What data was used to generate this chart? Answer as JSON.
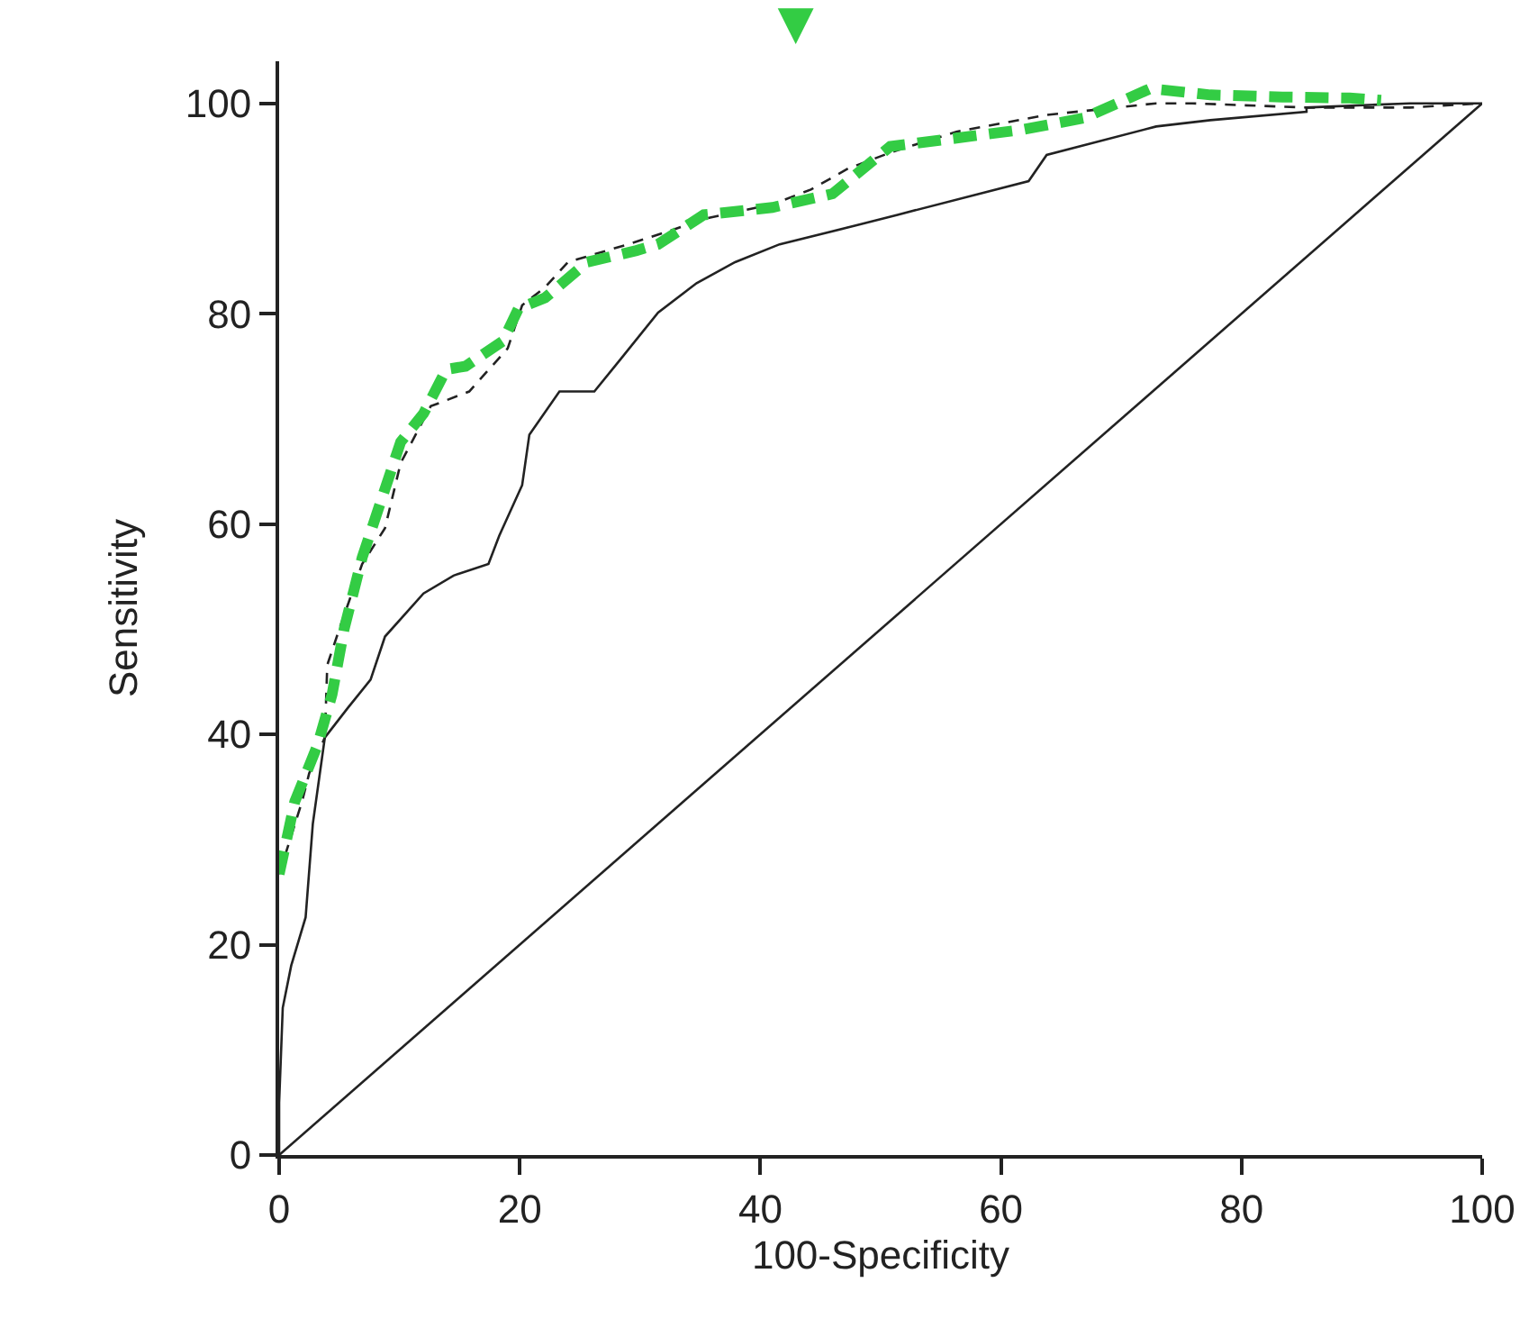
{
  "chart_data": {
    "type": "line",
    "xlabel": "100-Specificity",
    "ylabel": "Sensitivity",
    "xlim": [
      0,
      100
    ],
    "ylim": [
      0,
      104
    ],
    "xticks": [
      0,
      20,
      40,
      60,
      80,
      100
    ],
    "yticks": [
      0,
      20,
      40,
      60,
      80,
      100
    ],
    "marker": "none",
    "series": [
      {
        "color": "#222222",
        "line_style": "solid",
        "x": [
          0,
          100
        ],
        "values": [
          0,
          100
        ]
      },
      {
        "color": "#222222",
        "line_style": "solid",
        "x": [
          0,
          0,
          0.3,
          1,
          2.2,
          2.8,
          3.8,
          5.7,
          7.6,
          8.8,
          12,
          14.5,
          17.4,
          18.3,
          20.2,
          20.8,
          23.3,
          26.2,
          28.4,
          31.5,
          34.7,
          37.9,
          41.6,
          48,
          51.4,
          62.3,
          63.8,
          72.9,
          77.4,
          85.4,
          85.4,
          94,
          100
        ],
        "values": [
          0,
          5,
          14,
          18,
          22.6,
          31.5,
          39.7,
          42.5,
          45.2,
          49.3,
          53.4,
          55.1,
          56.2,
          58.9,
          63.7,
          68.5,
          72.6,
          72.6,
          75.7,
          80.1,
          82.9,
          84.9,
          86.6,
          88.4,
          89.4,
          92.6,
          95.1,
          97.8,
          98.4,
          99.2,
          99.6,
          100,
          100
        ]
      },
      {
        "color": "#222222",
        "line_style": "dashed",
        "x": [
          0,
          1.9,
          2.5,
          3.8,
          4,
          5,
          6.9,
          8.8,
          10.1,
          12.6,
          15.8,
          19,
          20.2,
          22.1,
          24,
          29,
          32.8,
          35.3,
          41,
          44.2,
          47.3,
          51,
          56.3,
          63.8,
          72.9,
          75.9,
          85.4,
          94,
          100
        ],
        "values": [
          26.7,
          33.6,
          36.3,
          39.7,
          46.6,
          50,
          56.2,
          59.6,
          65.8,
          71.2,
          72.6,
          76.7,
          80.8,
          82.5,
          84.9,
          86.6,
          88,
          89,
          90.4,
          91.8,
          93.8,
          95.4,
          97.3,
          98.9,
          100,
          100,
          99.6,
          99.6,
          100
        ]
      },
      {
        "color": "#33cc44",
        "line_style": "dashed",
        "x": [
          0,
          1.3,
          3.2,
          4.4,
          5.4,
          6.9,
          8.5,
          10.1,
          12,
          13.9,
          15.5,
          18.6,
          19.9,
          22.1,
          25.6,
          29.7,
          31.5,
          35.3,
          41,
          46,
          50.8,
          56.3,
          61.8,
          66.9,
          72.4,
          77.4,
          83.4,
          89,
          91.6
        ],
        "values": [
          26.7,
          33.6,
          39,
          43.8,
          50,
          56.8,
          62.3,
          67.8,
          70.5,
          74.7,
          75,
          77.4,
          80.5,
          81.5,
          84.9,
          86,
          86.6,
          89.4,
          90.1,
          91.4,
          95.9,
          96.7,
          97.5,
          98.6,
          101.4,
          100.8,
          100.6,
          100.5,
          100.3
        ]
      }
    ],
    "annotations": [
      "▼"
    ]
  }
}
